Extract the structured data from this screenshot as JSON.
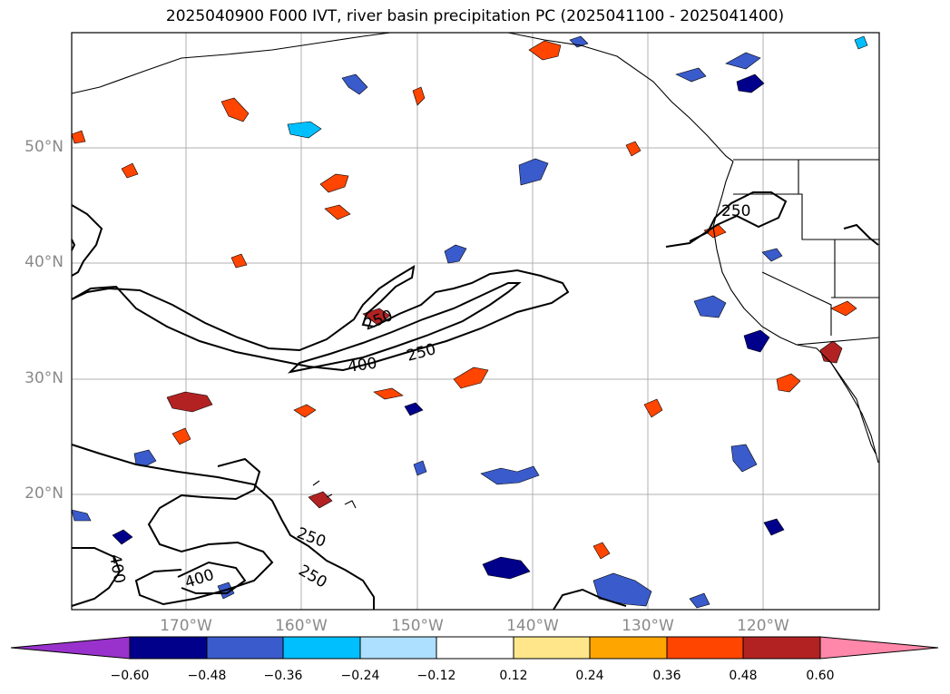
{
  "title": "2025040900 F000 IVT, river basin precipitation PC (2025041100 - 2025041400)",
  "map": {
    "lat_labels": [
      "50°N",
      "40°N",
      "30°N",
      "20°N"
    ],
    "lon_labels": [
      "170°W",
      "160°W",
      "150°W",
      "140°W",
      "130°W",
      "120°W"
    ],
    "ivt_contour_labels": [
      "250",
      "250",
      "250",
      "250",
      "250",
      "400",
      "400",
      "400"
    ],
    "grid": true
  },
  "colorbar": {
    "tick_labels": [
      "−0.60",
      "−0.48",
      "−0.36",
      "−0.24",
      "−0.12",
      "0.12",
      "0.24",
      "0.36",
      "0.48",
      "0.60"
    ],
    "colors": [
      "#9932CC",
      "#00008B",
      "#3A5BCB",
      "#00BFFF",
      "#ADDFFF",
      "#FFFFFF",
      "#FFE68A",
      "#FFA500",
      "#FF4500",
      "#B22222",
      "#FF88AA"
    ],
    "extend": "both"
  },
  "colors": {
    "land_outline": "#000000",
    "grid": "#b0b0b0",
    "axis_label": "#8a8a8a"
  }
}
